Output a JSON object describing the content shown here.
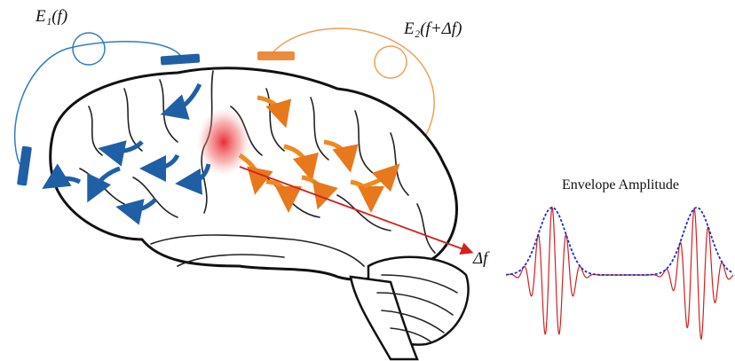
{
  "labels": {
    "electrode_1": "E₁(f)",
    "electrode_2": "E₂(f+Δf)",
    "difference": "Δf",
    "envelope": "Envelope Amplitude"
  }
}
